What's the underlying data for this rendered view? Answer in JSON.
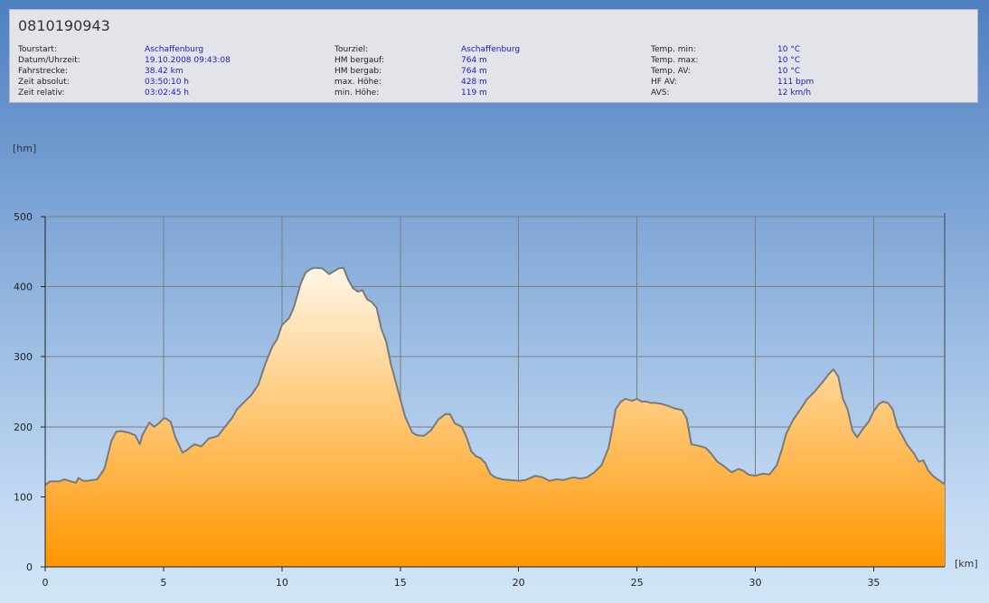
{
  "header": {
    "title": "0810190943",
    "columns": [
      [
        {
          "label": "Tourstart:",
          "value": "Aschaffenburg"
        },
        {
          "label": "Datum/Uhrzeit:",
          "value": "19.10.2008 09:43:08"
        },
        {
          "label": "Fahrstrecke:",
          "value": "38.42 km"
        },
        {
          "label": "Zeit absolut:",
          "value": "03:50:10 h"
        },
        {
          "label": "Zeit relativ:",
          "value": "03:02:45 h"
        }
      ],
      [
        {
          "label": "Tourziel:",
          "value": "Aschaffenburg"
        },
        {
          "label": "HM bergauf:",
          "value": "764 m"
        },
        {
          "label": "HM bergab:",
          "value": "764 m"
        },
        {
          "label": "max. Höhe:",
          "value": "428 m"
        },
        {
          "label": "min. Höhe:",
          "value": "119 m"
        }
      ],
      [
        {
          "label": "Temp. min:",
          "value": "10 °C"
        },
        {
          "label": "Temp. max:",
          "value": "10 °C"
        },
        {
          "label": "Temp. AV:",
          "value": "10 °C"
        },
        {
          "label": "HF AV:",
          "value": "111 bpm"
        },
        {
          "label": "AVS:",
          "value": "12 km/h"
        }
      ]
    ]
  },
  "colors": {
    "fill_top": "#fff6e6",
    "fill_bottom": "#ff9600",
    "line": "#7a7a7a",
    "grid": "#7d7d7d"
  },
  "chart_data": {
    "type": "area",
    "xlabel": "[km]",
    "ylabel": "[hm]",
    "xlim": [
      0,
      38
    ],
    "ylim": [
      0,
      500
    ],
    "xticks": [
      0,
      5,
      10,
      15,
      20,
      25,
      30,
      35
    ],
    "yticks": [
      0,
      100,
      200,
      300,
      400,
      500
    ],
    "grid": true,
    "series": [
      {
        "x": [
          0,
          0.2,
          0.6,
          0.8,
          1.0,
          1.3,
          1.4,
          1.6,
          1.8,
          2.2,
          2.5,
          2.8,
          3.0,
          3.2,
          3.5,
          3.8,
          4.0,
          4.1,
          4.3,
          4.4,
          4.6,
          4.8,
          5.0,
          5.1,
          5.3,
          5.5,
          5.8,
          6.0,
          6.1,
          6.3,
          6.6,
          6.9,
          7.1,
          7.3,
          7.6,
          7.9,
          8.1,
          8.4,
          8.7,
          9.0,
          9.3,
          9.6,
          9.8,
          10.0,
          10.3,
          10.5,
          10.8,
          11.0,
          11.2,
          11.4,
          11.7,
          12.0,
          12.2,
          12.4,
          12.6,
          12.8,
          13.0,
          13.2,
          13.4,
          13.6,
          13.8,
          14.0,
          14.2,
          14.4,
          14.6,
          14.8,
          15.0,
          15.2,
          15.5,
          15.7,
          16.0,
          16.3,
          16.6,
          16.9,
          17.1,
          17.3,
          17.6,
          17.8,
          18.0,
          18.2,
          18.4,
          18.6,
          18.8,
          19.0,
          19.3,
          19.6,
          20.0,
          20.3,
          20.7,
          21.0,
          21.3,
          21.6,
          21.9,
          22.3,
          22.6,
          22.9,
          23.2,
          23.5,
          23.8,
          24.0,
          24.1,
          24.3,
          24.5,
          24.7,
          24.8,
          25.0,
          25.2,
          25.4,
          25.6,
          25.8,
          26.0,
          26.3,
          26.6,
          26.9,
          27.1,
          27.3,
          27.6,
          27.9,
          28.1,
          28.4,
          28.7,
          29.0,
          29.3,
          29.5,
          29.7,
          30.0,
          30.3,
          30.6,
          30.9,
          31.1,
          31.3,
          31.6,
          31.9,
          32.2,
          32.5,
          32.8,
          33.1,
          33.3,
          33.5,
          33.7,
          33.9,
          34.1,
          34.3,
          34.5,
          34.8,
          35.0,
          35.2,
          35.4,
          35.6,
          35.8,
          36.0,
          36.2,
          36.4,
          36.7,
          36.9,
          37.1,
          37.3,
          37.5,
          37.7,
          38.0
        ],
        "y": [
          117,
          122,
          122,
          125,
          123,
          120,
          127,
          123,
          123,
          125,
          140,
          180,
          193,
          194,
          192,
          188,
          175,
          188,
          200,
          206,
          200,
          205,
          212,
          212,
          207,
          185,
          163,
          167,
          170,
          175,
          172,
          183,
          185,
          187,
          200,
          213,
          225,
          235,
          245,
          260,
          290,
          315,
          325,
          345,
          355,
          370,
          405,
          420,
          425,
          427,
          426,
          418,
          422,
          426,
          427,
          410,
          398,
          393,
          395,
          382,
          378,
          370,
          340,
          322,
          290,
          265,
          240,
          215,
          192,
          188,
          187,
          195,
          210,
          218,
          218,
          205,
          200,
          185,
          165,
          158,
          155,
          148,
          133,
          128,
          125,
          124,
          123,
          124,
          130,
          128,
          123,
          125,
          124,
          128,
          126,
          128,
          135,
          145,
          170,
          205,
          225,
          235,
          240,
          238,
          237,
          240,
          236,
          236,
          234,
          234,
          233,
          230,
          226,
          224,
          212,
          175,
          173,
          170,
          163,
          150,
          143,
          135,
          140,
          137,
          132,
          130,
          133,
          132,
          145,
          165,
          190,
          210,
          225,
          240,
          250,
          262,
          275,
          282,
          272,
          240,
          225,
          195,
          185,
          195,
          208,
          222,
          232,
          236,
          234,
          225,
          200,
          188,
          175,
          162,
          150,
          152,
          138,
          130,
          125,
          118
        ]
      }
    ]
  }
}
